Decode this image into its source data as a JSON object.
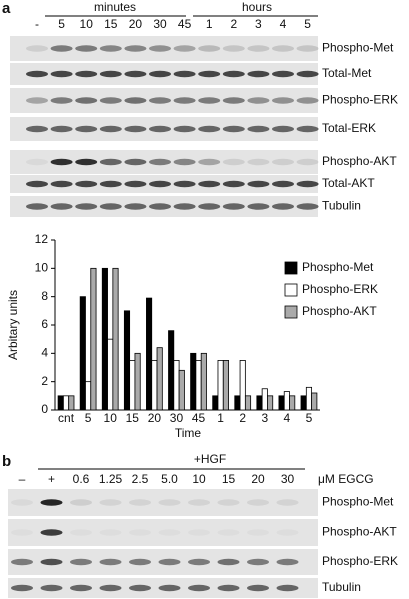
{
  "panel_a": {
    "label": "a",
    "group_labels": [
      "minutes",
      "hours"
    ],
    "lanes": [
      "-",
      "5",
      "10",
      "15",
      "20",
      "30",
      "45",
      "1",
      "2",
      "3",
      "4",
      "5"
    ],
    "blots": [
      "Phospho-Met",
      "Total-Met",
      "Phospho-ERK",
      "Total-ERK",
      "Phospho-AKT",
      "Total-AKT",
      "Tubulin"
    ]
  },
  "chart_data": {
    "type": "bar",
    "ylabel": "Arbitary units",
    "xlabel": "Time",
    "categories": [
      "cnt",
      "5",
      "10",
      "15",
      "20",
      "30",
      "45",
      "1",
      "2",
      "3",
      "4",
      "5"
    ],
    "series": [
      {
        "name": "Phospho-Met",
        "color": "#000000",
        "values": [
          1,
          8,
          10,
          7,
          7.9,
          5.6,
          4,
          1,
          1,
          1,
          1,
          1
        ]
      },
      {
        "name": "Phospho-ERK",
        "color": "#ffffff",
        "values": [
          1,
          2,
          5,
          3.5,
          3.5,
          3.5,
          3.5,
          3.5,
          3.5,
          1.5,
          1.3,
          1.6
        ]
      },
      {
        "name": "Phospho-AKT",
        "color": "#aaaaaa",
        "values": [
          1,
          10,
          10,
          4,
          4.4,
          2.8,
          4,
          3.5,
          1,
          1,
          1,
          1.2
        ]
      }
    ],
    "ylim": [
      0,
      12
    ],
    "yticks": [
      0,
      2,
      4,
      6,
      8,
      10,
      12
    ],
    "legend": "right"
  },
  "panel_b": {
    "label": "b",
    "treatment": "+HGF",
    "lanes": [
      "–",
      "+",
      "0.6",
      "1.25",
      "2.5",
      "5.0",
      "10",
      "15",
      "20",
      "30"
    ],
    "unit": "μM EGCG",
    "blots": [
      "Phospho-Met",
      "Phospho-AKT",
      "Phospho-ERK",
      "Tubulin"
    ]
  }
}
